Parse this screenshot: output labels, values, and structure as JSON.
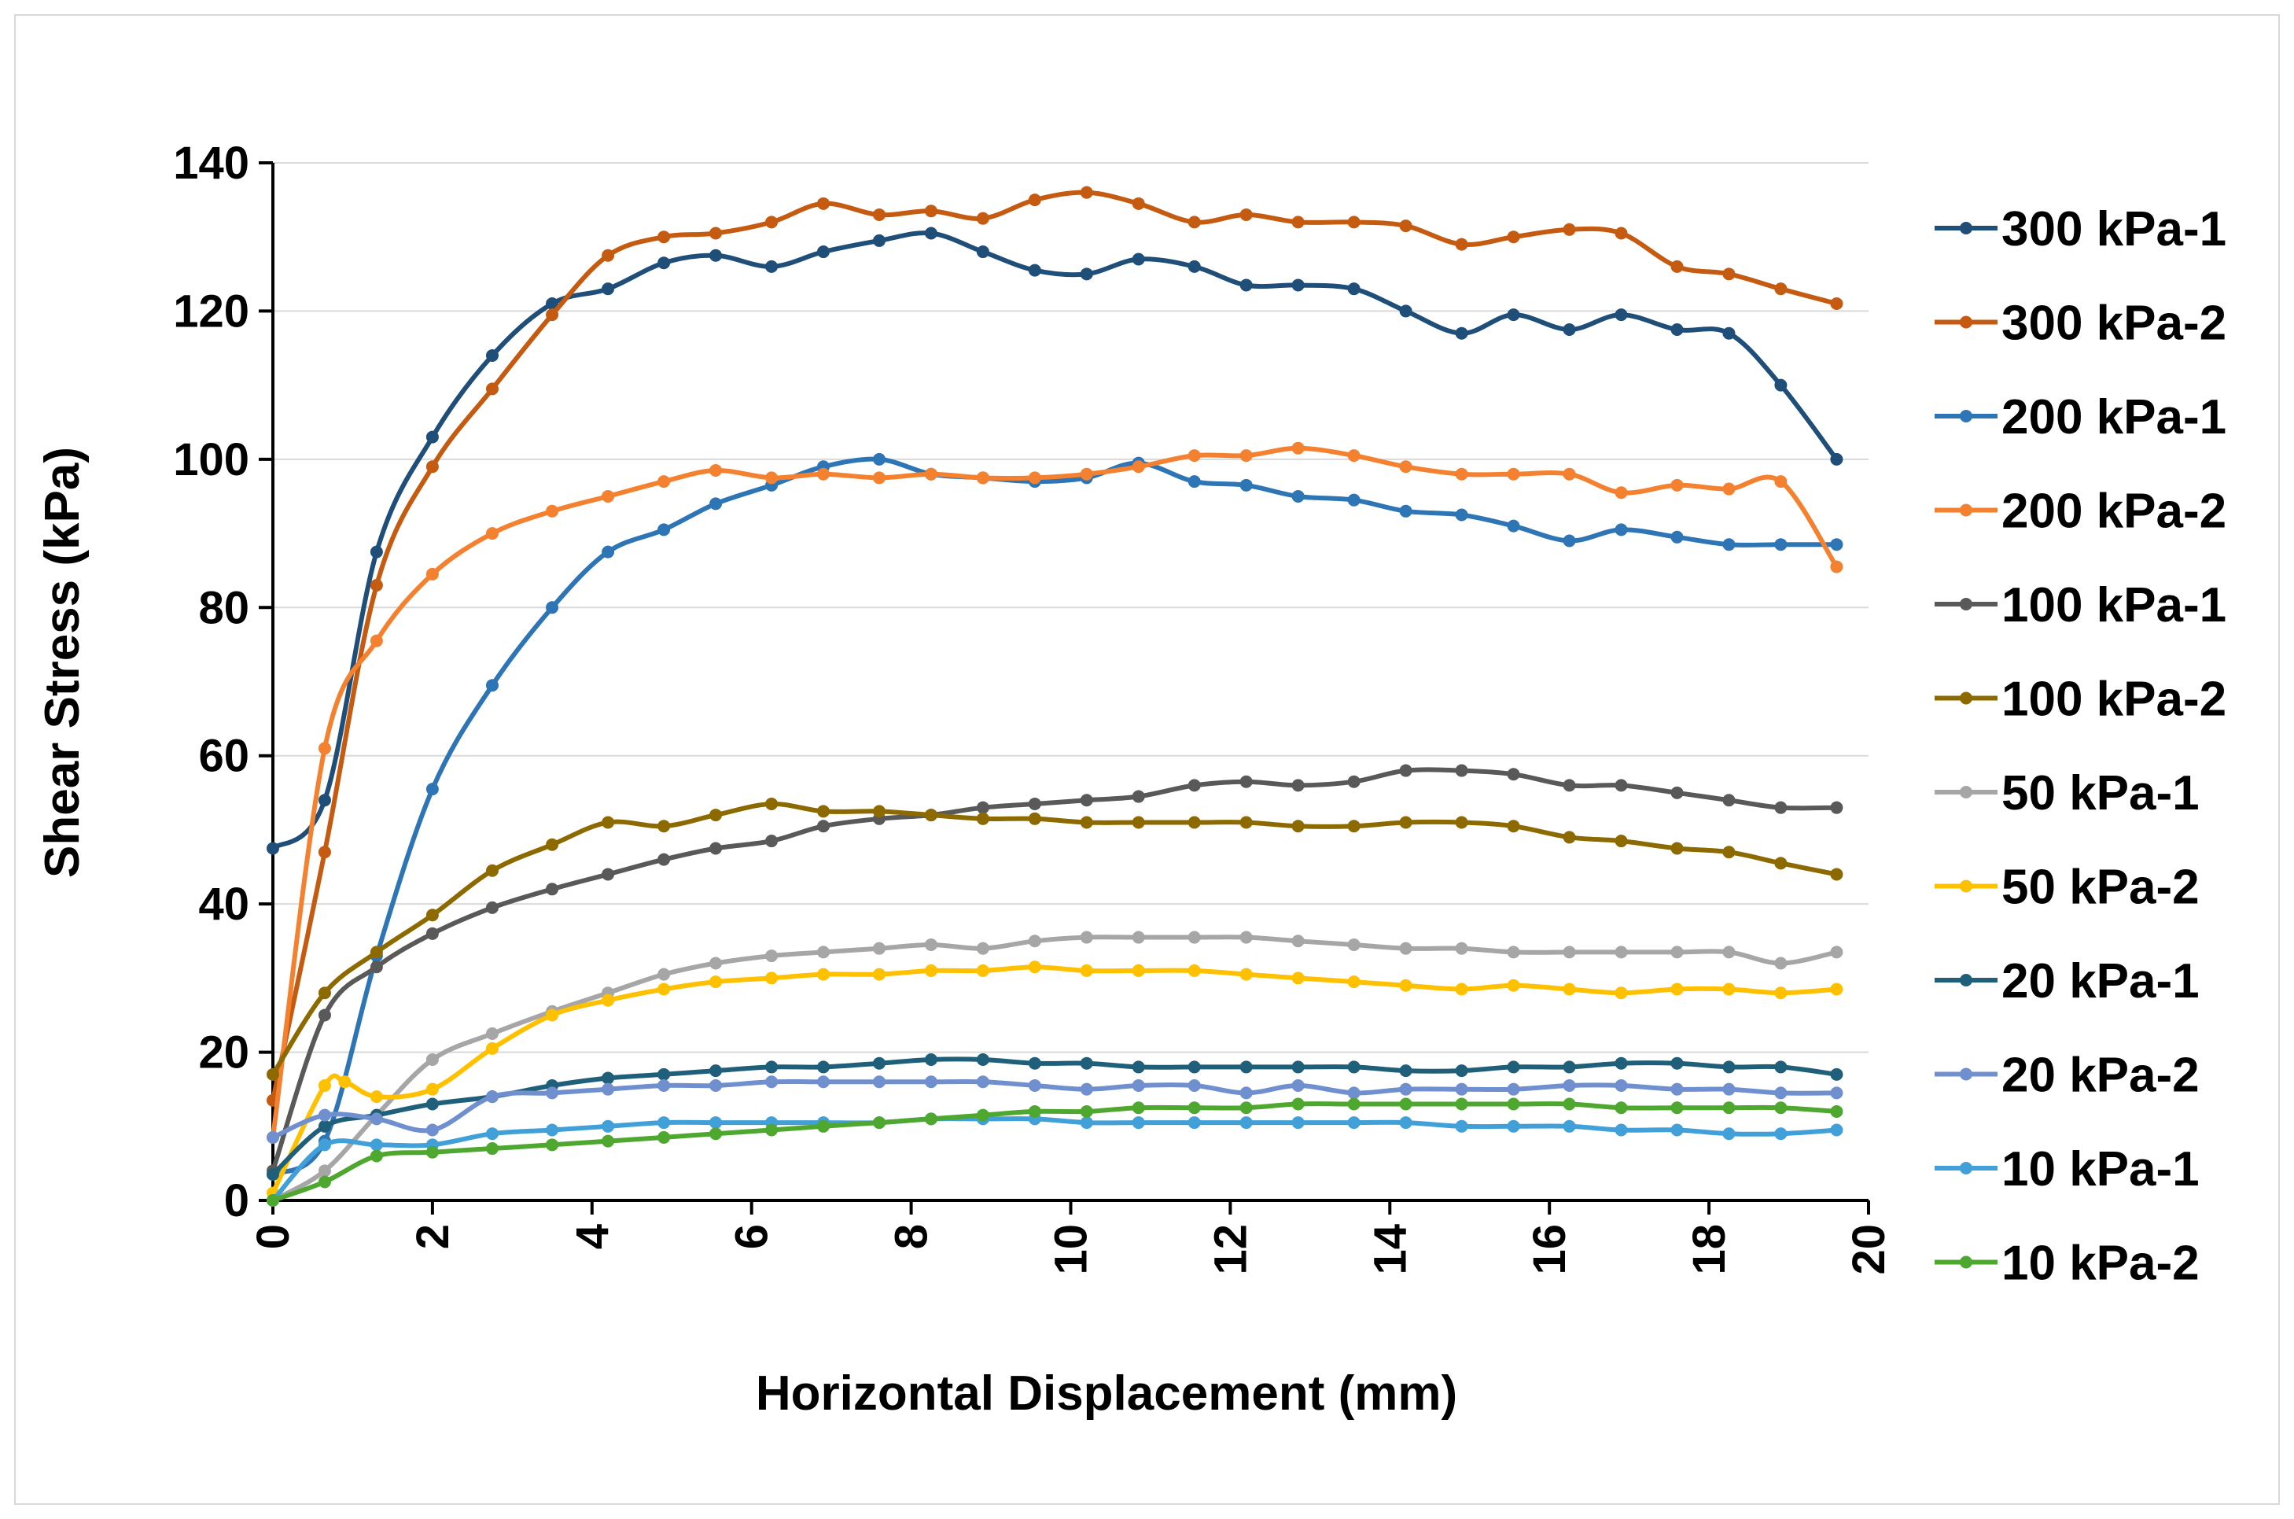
{
  "chart_data": {
    "type": "line",
    "title": "",
    "xlabel": "Horizontal Displacement (mm)",
    "ylabel": "Shear Stress (kPa)",
    "xlim": [
      0,
      20
    ],
    "ylim": [
      0,
      140
    ],
    "x_ticks": [
      "0",
      "2",
      "4",
      "6",
      "8",
      "10",
      "12",
      "14",
      "16",
      "18",
      "20"
    ],
    "y_ticks": [
      "0",
      "20",
      "40",
      "60",
      "80",
      "100",
      "120",
      "140"
    ],
    "grid": "horizontal",
    "legend_position": "right",
    "series": [
      {
        "name": "300 kPa-1",
        "color": "#1f4e79",
        "x": [
          0,
          0.65,
          1.3,
          2.0,
          2.75,
          3.5,
          4.2,
          4.9,
          5.55,
          6.25,
          6.9,
          7.6,
          8.25,
          8.9,
          9.55,
          10.2,
          10.85,
          11.55,
          12.2,
          12.85,
          13.55,
          14.2,
          14.9,
          15.55,
          16.25,
          16.9,
          17.6,
          18.25,
          18.9,
          19.6
        ],
        "y": [
          47.5,
          54,
          87.5,
          103,
          114,
          121,
          123,
          126.5,
          127.5,
          126,
          128,
          129.5,
          130.5,
          128,
          125.5,
          125,
          127,
          126,
          123.5,
          123.5,
          123,
          120,
          117,
          119.5,
          117.5,
          119.5,
          117.5,
          117,
          110,
          100
        ]
      },
      {
        "name": "300 kPa-2",
        "color": "#c55a11",
        "x": [
          0,
          0.65,
          1.3,
          2.0,
          2.75,
          3.5,
          4.2,
          4.9,
          5.55,
          6.25,
          6.9,
          7.6,
          8.25,
          8.9,
          9.55,
          10.2,
          10.85,
          11.55,
          12.2,
          12.85,
          13.55,
          14.2,
          14.9,
          15.55,
          16.25,
          16.9,
          17.6,
          18.25,
          18.9,
          19.6
        ],
        "y": [
          13.5,
          47,
          83,
          99,
          109.5,
          119.5,
          127.5,
          130,
          130.5,
          132,
          134.5,
          133,
          133.5,
          132.5,
          135,
          136,
          134.5,
          132,
          133,
          132,
          132,
          131.5,
          129,
          130,
          131,
          130.5,
          126,
          125,
          123,
          121
        ]
      },
      {
        "name": "200 kPa-1",
        "color": "#2e75b6",
        "x": [
          0,
          0.65,
          1.3,
          2.0,
          2.75,
          3.5,
          4.2,
          4.9,
          5.55,
          6.25,
          6.9,
          7.6,
          8.25,
          8.9,
          9.55,
          10.2,
          10.85,
          11.55,
          12.2,
          12.85,
          13.55,
          14.2,
          14.9,
          15.55,
          16.25,
          16.9,
          17.6,
          18.25,
          18.9,
          19.6
        ],
        "y": [
          3.5,
          8,
          33,
          55.5,
          69.5,
          80,
          87.5,
          90.5,
          94,
          96.5,
          99,
          100,
          98,
          97.5,
          97,
          97.5,
          99.5,
          97,
          96.5,
          95,
          94.5,
          93,
          92.5,
          91,
          89,
          90.5,
          89.5,
          88.5,
          88.5,
          88.5
        ]
      },
      {
        "name": "200 kPa-2",
        "color": "#f4812f",
        "x": [
          0,
          0.65,
          1.3,
          2.0,
          2.75,
          3.5,
          4.2,
          4.9,
          5.55,
          6.25,
          6.9,
          7.6,
          8.25,
          8.9,
          9.55,
          10.2,
          10.85,
          11.55,
          12.2,
          12.85,
          13.55,
          14.2,
          14.9,
          15.55,
          16.25,
          16.9,
          17.6,
          18.25,
          18.9,
          19.6
        ],
        "y": [
          8.5,
          61,
          75.5,
          84.5,
          90,
          93,
          95,
          97,
          98.5,
          97.5,
          98,
          97.5,
          98,
          97.5,
          97.5,
          98,
          99,
          100.5,
          100.5,
          101.5,
          100.5,
          99,
          98,
          98,
          98,
          95.5,
          96.5,
          96,
          97,
          85.5
        ]
      },
      {
        "name": "100 kPa-1",
        "color": "#595959",
        "x": [
          0,
          0.65,
          1.3,
          2.0,
          2.75,
          3.5,
          4.2,
          4.9,
          5.55,
          6.25,
          6.9,
          7.6,
          8.25,
          8.9,
          9.55,
          10.2,
          10.85,
          11.55,
          12.2,
          12.85,
          13.55,
          14.2,
          14.9,
          15.55,
          16.25,
          16.9,
          17.6,
          18.25,
          18.9,
          19.6
        ],
        "y": [
          4,
          25,
          31.5,
          36,
          39.5,
          42,
          44,
          46,
          47.5,
          48.5,
          50.5,
          51.5,
          52,
          53,
          53.5,
          54,
          54.5,
          56,
          56.5,
          56,
          56.5,
          58,
          58,
          57.5,
          56,
          56,
          55,
          54,
          53,
          53
        ]
      },
      {
        "name": "100 kPa-2",
        "color": "#8c6a00",
        "x": [
          0,
          0.65,
          1.3,
          2.0,
          2.75,
          3.5,
          4.2,
          4.9,
          5.55,
          6.25,
          6.9,
          7.6,
          8.25,
          8.9,
          9.55,
          10.2,
          10.85,
          11.55,
          12.2,
          12.85,
          13.55,
          14.2,
          14.9,
          15.55,
          16.25,
          16.9,
          17.6,
          18.25,
          18.9,
          19.6
        ],
        "y": [
          17,
          28,
          33.5,
          38.5,
          44.5,
          48,
          51,
          50.5,
          52,
          53.5,
          52.5,
          52.5,
          52,
          51.5,
          51.5,
          51,
          51,
          51,
          51,
          50.5,
          50.5,
          51,
          51,
          50.5,
          49,
          48.5,
          47.5,
          47,
          45.5,
          44
        ]
      },
      {
        "name": "50 kPa-1",
        "color": "#a6a6a6",
        "x": [
          0,
          0.65,
          1.3,
          2.0,
          2.75,
          3.5,
          4.2,
          4.9,
          5.55,
          6.25,
          6.9,
          7.6,
          8.25,
          8.9,
          9.55,
          10.2,
          10.85,
          11.55,
          12.2,
          12.85,
          13.55,
          14.2,
          14.9,
          15.55,
          16.25,
          16.9,
          17.6,
          18.25,
          18.9,
          19.6
        ],
        "y": [
          0,
          4,
          11.5,
          19,
          22.5,
          25.5,
          28,
          30.5,
          32,
          33,
          33.5,
          34,
          34.5,
          34,
          35,
          35.5,
          35.5,
          35.5,
          35.5,
          35,
          34.5,
          34,
          34,
          33.5,
          33.5,
          33.5,
          33.5,
          33.5,
          32,
          33.5
        ]
      },
      {
        "name": "50 kPa-2",
        "color": "#ffc000",
        "x": [
          0,
          0.65,
          0.9,
          1.3,
          2.0,
          2.75,
          3.5,
          4.2,
          4.9,
          5.55,
          6.25,
          6.9,
          7.6,
          8.25,
          8.9,
          9.55,
          10.2,
          10.85,
          11.55,
          12.2,
          12.85,
          13.55,
          14.2,
          14.9,
          15.55,
          16.25,
          16.9,
          17.6,
          18.25,
          18.9,
          19.6
        ],
        "y": [
          1,
          15.5,
          16,
          14,
          15,
          20.5,
          25,
          27,
          28.5,
          29.5,
          30,
          30.5,
          30.5,
          31,
          31,
          31.5,
          31,
          31,
          31,
          30.5,
          30,
          29.5,
          29,
          28.5,
          29,
          28.5,
          28,
          28.5,
          28.5,
          28,
          28.5
        ]
      },
      {
        "name": "20 kPa-1",
        "color": "#1f5f7a",
        "x": [
          0,
          0.65,
          1.3,
          2.0,
          2.75,
          3.5,
          4.2,
          4.9,
          5.55,
          6.25,
          6.9,
          7.6,
          8.25,
          8.9,
          9.55,
          10.2,
          10.85,
          11.55,
          12.2,
          12.85,
          13.55,
          14.2,
          14.9,
          15.55,
          16.25,
          16.9,
          17.6,
          18.25,
          18.9,
          19.6
        ],
        "y": [
          3.5,
          10,
          11.5,
          13,
          14,
          15.5,
          16.5,
          17,
          17.5,
          18,
          18,
          18.5,
          19,
          19,
          18.5,
          18.5,
          18,
          18,
          18,
          18,
          18,
          17.5,
          17.5,
          18,
          18,
          18.5,
          18.5,
          18,
          18,
          17
        ]
      },
      {
        "name": "20 kPa-2",
        "color": "#6f8fcf",
        "x": [
          0,
          0.65,
          1.3,
          2.0,
          2.75,
          3.5,
          4.2,
          4.9,
          5.55,
          6.25,
          6.9,
          7.6,
          8.25,
          8.9,
          9.55,
          10.2,
          10.85,
          11.55,
          12.2,
          12.85,
          13.55,
          14.2,
          14.9,
          15.55,
          16.25,
          16.9,
          17.6,
          18.25,
          18.9,
          19.6
        ],
        "y": [
          8.5,
          11.5,
          11,
          9.5,
          14,
          14.5,
          15,
          15.5,
          15.5,
          16,
          16,
          16,
          16,
          16,
          15.5,
          15,
          15.5,
          15.5,
          14.5,
          15.5,
          14.5,
          15,
          15,
          15,
          15.5,
          15.5,
          15,
          15,
          14.5,
          14.5
        ]
      },
      {
        "name": "10 kPa-1",
        "color": "#41a0d8",
        "x": [
          0,
          0.65,
          1.3,
          2.0,
          2.75,
          3.5,
          4.2,
          4.9,
          5.55,
          6.25,
          6.9,
          7.6,
          8.25,
          8.9,
          9.55,
          10.2,
          10.85,
          11.55,
          12.2,
          12.85,
          13.55,
          14.2,
          14.9,
          15.55,
          16.25,
          16.9,
          17.6,
          18.25,
          18.9,
          19.6
        ],
        "y": [
          0,
          7.5,
          7.5,
          7.5,
          9,
          9.5,
          10,
          10.5,
          10.5,
          10.5,
          10.5,
          10.5,
          11,
          11,
          11,
          10.5,
          10.5,
          10.5,
          10.5,
          10.5,
          10.5,
          10.5,
          10,
          10,
          10,
          9.5,
          9.5,
          9,
          9,
          9.5
        ]
      },
      {
        "name": "10 kPa-2",
        "color": "#4ea72e",
        "x": [
          0,
          0.65,
          1.3,
          2.0,
          2.75,
          3.5,
          4.2,
          4.9,
          5.55,
          6.25,
          6.9,
          7.6,
          8.25,
          8.9,
          9.55,
          10.2,
          10.85,
          11.55,
          12.2,
          12.85,
          13.55,
          14.2,
          14.9,
          15.55,
          16.25,
          16.9,
          17.6,
          18.25,
          18.9,
          19.6
        ],
        "y": [
          0,
          2.5,
          6,
          6.5,
          7,
          7.5,
          8,
          8.5,
          9,
          9.5,
          10,
          10.5,
          11,
          11.5,
          12,
          12,
          12.5,
          12.5,
          12.5,
          13,
          13,
          13,
          13,
          13,
          13,
          12.5,
          12.5,
          12.5,
          12.5,
          12
        ]
      }
    ]
  }
}
